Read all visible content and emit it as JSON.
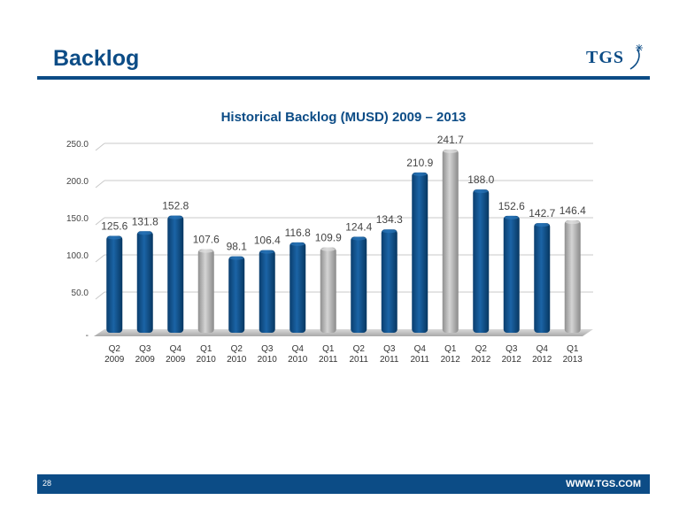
{
  "header": {
    "title": "Backlog",
    "logo_text": "TGS"
  },
  "footer": {
    "page_number": "28",
    "url": "WWW.TGS.COM"
  },
  "colors": {
    "brand": "#0c4c86",
    "bar_primary": "#0b4f8a",
    "bar_q1": "#b7b7b7"
  },
  "chart_data": {
    "type": "bar",
    "title": "Historical Backlog (MUSD) 2009 – 2013",
    "xlabel": "",
    "ylabel": "",
    "ylim": [
      0,
      250
    ],
    "yticks": [
      {
        "value": 0,
        "label": "-"
      },
      {
        "value": 50,
        "label": "50.0"
      },
      {
        "value": 100,
        "label": "100.0"
      },
      {
        "value": 150,
        "label": "150.0"
      },
      {
        "value": 200,
        "label": "200.0"
      },
      {
        "value": 250,
        "label": "250.0"
      }
    ],
    "grid": true,
    "categories": [
      [
        "Q2",
        "2009"
      ],
      [
        "Q3",
        "2009"
      ],
      [
        "Q4",
        "2009"
      ],
      [
        "Q1",
        "2010"
      ],
      [
        "Q2",
        "2010"
      ],
      [
        "Q3",
        "2010"
      ],
      [
        "Q4",
        "2010"
      ],
      [
        "Q1",
        "2011"
      ],
      [
        "Q2",
        "2011"
      ],
      [
        "Q3",
        "2011"
      ],
      [
        "Q4",
        "2011"
      ],
      [
        "Q1",
        "2012"
      ],
      [
        "Q2",
        "2012"
      ],
      [
        "Q3",
        "2012"
      ],
      [
        "Q4",
        "2012"
      ],
      [
        "Q1",
        "2013"
      ]
    ],
    "values": [
      125.6,
      131.8,
      152.8,
      107.6,
      98.1,
      106.4,
      116.8,
      109.9,
      124.4,
      134.3,
      210.9,
      241.7,
      188.0,
      152.6,
      142.7,
      146.4
    ],
    "labels": [
      "125.6",
      "131.8",
      "152.8",
      "107.6",
      "98.1",
      "106.4",
      "116.8",
      "109.9",
      "124.4",
      "134.3",
      "210.9",
      "241.7",
      "188.0",
      "152.6",
      "142.7",
      "146.4"
    ],
    "highlight_q1": true
  }
}
